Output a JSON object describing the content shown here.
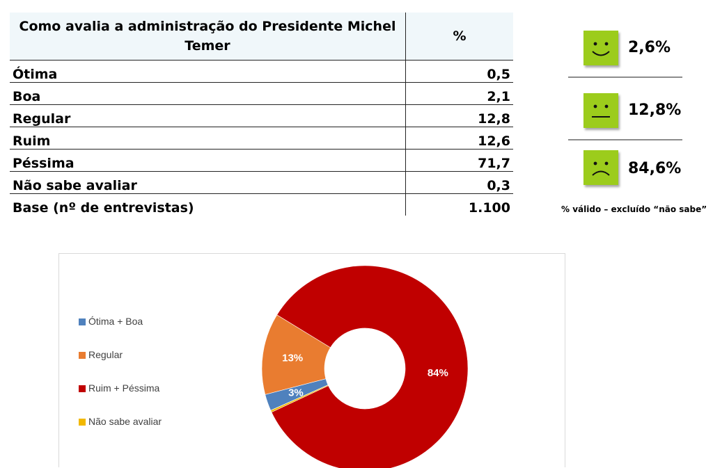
{
  "table": {
    "header_question": "Como avalia a administração  do Presidente Michel Temer",
    "header_pct": "%",
    "rows": [
      {
        "label": "Ótima",
        "value": "0,5"
      },
      {
        "label": "Boa",
        "value": "2,1"
      },
      {
        "label": "Regular",
        "value": "12,8"
      },
      {
        "label": "Ruim",
        "value": "12,6"
      },
      {
        "label": "Péssima",
        "value": "71,7"
      },
      {
        "label": "Não sabe avaliar",
        "value": "0,3"
      },
      {
        "label": "Base (nº de entrevistas)",
        "value": "1.100"
      }
    ]
  },
  "faces": {
    "items": [
      {
        "mood": "happy-face-icon",
        "pct": "2,6%"
      },
      {
        "mood": "neutral-face-icon",
        "pct": "12,8%"
      },
      {
        "mood": "sad-face-icon",
        "pct": "84,6%"
      }
    ],
    "note": "% válido – excluído “não sabe”",
    "sticky_color": "#9ccc1c"
  },
  "chart_data": {
    "type": "pie",
    "style": "donut",
    "categories": [
      "Ótima + Boa",
      "Regular",
      "Ruim + Péssima",
      "Não sabe avaliar"
    ],
    "values": [
      2.6,
      12.8,
      84.3,
      0.3
    ],
    "data_labels": [
      "3%",
      "13%",
      "84%",
      ""
    ],
    "colors": [
      "#4f81bd",
      "#e97c30",
      "#c00000",
      "#f2b800"
    ],
    "legend_position": "left",
    "start_angle_deg": 246
  }
}
